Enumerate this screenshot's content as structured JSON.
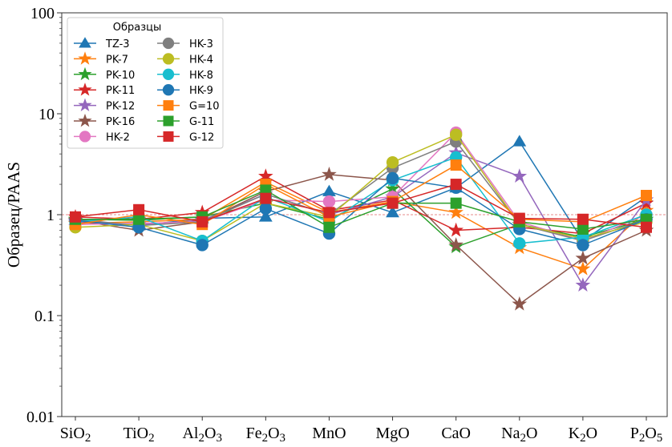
{
  "chart_data": {
    "type": "line",
    "title": "",
    "xlabel": "",
    "ylabel": "Образец/PAAS",
    "yscale": "log",
    "ylim": [
      0.01,
      100
    ],
    "yticks": [
      {
        "value": 0.01,
        "label": "0.01"
      },
      {
        "value": 0.1,
        "label": "0.1"
      },
      {
        "value": 1,
        "label": "1"
      },
      {
        "value": 10,
        "label": "10"
      },
      {
        "value": 100,
        "label": "100"
      }
    ],
    "categories": [
      {
        "base": "SiO",
        "sub": "2",
        "base2": "",
        "sub2": ""
      },
      {
        "base": "TiO",
        "sub": "2",
        "base2": "",
        "sub2": ""
      },
      {
        "base": "Al",
        "sub": "2",
        "base2": "O",
        "sub2": "3"
      },
      {
        "base": "Fe",
        "sub": "2",
        "base2": "O",
        "sub2": "3"
      },
      {
        "base": "MnO",
        "sub": "",
        "base2": "",
        "sub2": ""
      },
      {
        "base": "MgO",
        "sub": "",
        "base2": "",
        "sub2": ""
      },
      {
        "base": "CaO",
        "sub": "",
        "base2": "",
        "sub2": ""
      },
      {
        "base": "Na",
        "sub": "2",
        "base2": "O",
        "sub2": ""
      },
      {
        "base": "K",
        "sub": "2",
        "base2": "O",
        "sub2": ""
      },
      {
        "base": "P",
        "sub": "2",
        "base2": "O",
        "sub2": "5"
      }
    ],
    "reference_line": {
      "value": 1,
      "color": "#e06666",
      "style": "dashed"
    },
    "legend": {
      "title": "Образцы",
      "position": "top-left",
      "columns": 2
    },
    "series": [
      {
        "name": "TZ-3",
        "color": "#1f77b4",
        "marker": "triangle",
        "values": [
          0.88,
          0.78,
          0.92,
          0.95,
          1.7,
          1.05,
          1.85,
          5.3,
          0.55,
          1.5
        ]
      },
      {
        "name": "PK-7",
        "color": "#ff7f0e",
        "marker": "star",
        "values": [
          0.82,
          0.85,
          0.9,
          2.1,
          1.05,
          1.35,
          1.05,
          0.47,
          0.29,
          1.1
        ]
      },
      {
        "name": "PK-10",
        "color": "#2ca02c",
        "marker": "star",
        "values": [
          0.9,
          0.88,
          0.95,
          1.3,
          0.9,
          1.8,
          0.48,
          0.8,
          0.6,
          0.9
        ]
      },
      {
        "name": "PK-11",
        "color": "#d62728",
        "marker": "star",
        "values": [
          0.95,
          0.9,
          1.05,
          2.4,
          1.1,
          1.4,
          0.7,
          0.75,
          0.65,
          1.3
        ]
      },
      {
        "name": "PK-12",
        "color": "#9467bd",
        "marker": "star",
        "values": [
          0.85,
          0.8,
          0.88,
          1.6,
          1.0,
          1.5,
          4.1,
          2.4,
          0.2,
          1.4
        ]
      },
      {
        "name": "PK-16",
        "color": "#8c564b",
        "marker": "star",
        "values": [
          0.88,
          0.7,
          0.85,
          1.7,
          2.5,
          2.2,
          0.5,
          0.13,
          0.37,
          0.7
        ]
      },
      {
        "name": "HK-2",
        "color": "#e377c2",
        "marker": "circle",
        "values": [
          0.8,
          0.82,
          0.85,
          1.4,
          1.35,
          1.5,
          6.5,
          0.85,
          0.55,
          1.0
        ]
      },
      {
        "name": "HK-3",
        "color": "#7f7f7f",
        "marker": "circle",
        "values": [
          0.9,
          0.78,
          0.85,
          1.6,
          1.0,
          2.9,
          5.3,
          0.8,
          0.55,
          0.9
        ]
      },
      {
        "name": "HK-4",
        "color": "#bcbd22",
        "marker": "circle",
        "values": [
          0.75,
          0.8,
          0.55,
          1.3,
          0.95,
          3.3,
          6.2,
          0.8,
          0.58,
          0.85
        ]
      },
      {
        "name": "HK-8",
        "color": "#17becf",
        "marker": "circle",
        "values": [
          0.85,
          0.95,
          0.55,
          1.5,
          0.85,
          2.2,
          3.7,
          0.52,
          0.6,
          1.0
        ]
      },
      {
        "name": "HK-9",
        "color": "#1f77b4",
        "marker": "circle",
        "values": [
          0.88,
          0.75,
          0.5,
          1.15,
          0.65,
          2.3,
          1.85,
          0.72,
          0.5,
          0.9
        ]
      },
      {
        "name": "G=10",
        "color": "#ff7f0e",
        "marker": "square",
        "values": [
          0.8,
          1.0,
          0.8,
          2.0,
          0.95,
          1.35,
          3.1,
          0.9,
          0.85,
          1.55
        ]
      },
      {
        "name": "G-11",
        "color": "#2ca02c",
        "marker": "square",
        "values": [
          0.9,
          0.9,
          0.95,
          1.75,
          0.75,
          1.3,
          1.3,
          0.85,
          0.72,
          0.9
        ]
      },
      {
        "name": "G-12",
        "color": "#d62728",
        "marker": "square",
        "values": [
          0.95,
          1.12,
          0.85,
          1.45,
          1.05,
          1.3,
          2.0,
          0.92,
          0.9,
          0.75
        ]
      }
    ]
  }
}
